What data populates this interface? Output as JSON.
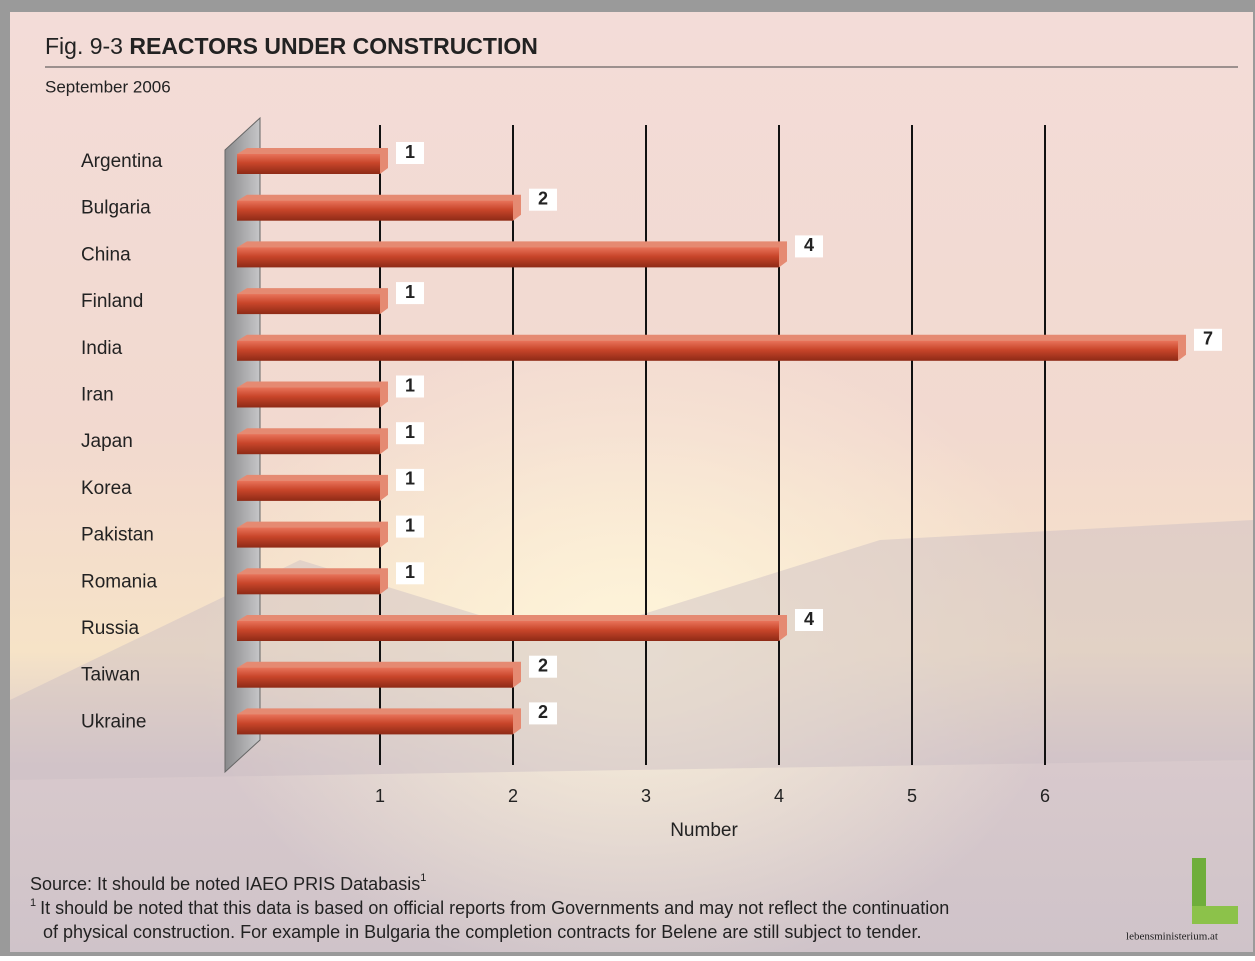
{
  "chart_data": {
    "type": "bar",
    "orientation": "horizontal",
    "title_prefix": "Fig. 9-3",
    "title": "REACTORS UNDER CONSTRUCTION",
    "subtitle": "September 2006",
    "categories": [
      "Argentina",
      "Bulgaria",
      "China",
      "Finland",
      "India",
      "Iran",
      "Japan",
      "Korea",
      "Pakistan",
      "Romania",
      "Russia",
      "Taiwan",
      "Ukraine"
    ],
    "values": [
      1,
      2,
      4,
      1,
      7,
      1,
      1,
      1,
      1,
      1,
      4,
      2,
      2
    ],
    "color": "#c8452a",
    "xlim": [
      0,
      7
    ],
    "xticks": [
      1,
      2,
      3,
      4,
      5,
      6
    ],
    "grid": true,
    "x_label": "Number",
    "source": "Source: It should be noted IAEO PRIS Databasis",
    "source_note_mark": "1",
    "footnote_mark": "1",
    "footnote_lines": [
      "It should be noted that this data is based on official reports from Governments and may not reflect the continuation",
      "of physical construction. For example in Bulgaria the completion contracts for Belene are still subject to tender."
    ],
    "logo": "lebensministerium.at"
  }
}
